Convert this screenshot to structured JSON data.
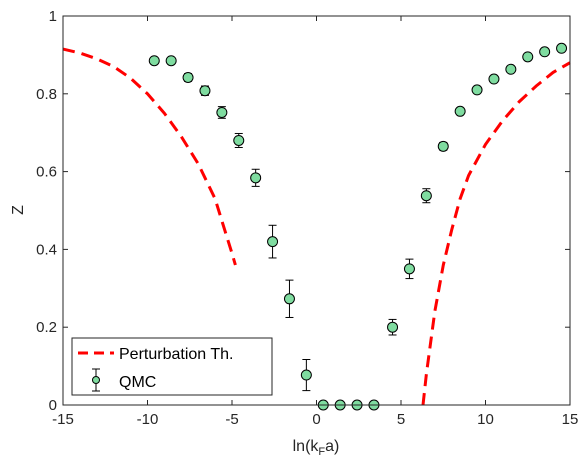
{
  "chart_data": {
    "type": "scatter",
    "xlabel": "ln(k",
    "xlabel_sub": "F",
    "xlabel_tail": "a)",
    "ylabel": "Z",
    "xlim": [
      -15,
      15
    ],
    "ylim": [
      0,
      1
    ],
    "x_ticks": [
      -15,
      -10,
      -5,
      0,
      5,
      10,
      15
    ],
    "y_ticks": [
      0,
      0.2,
      0.4,
      0.6,
      0.8,
      1
    ],
    "x_tick_labels": [
      "-15",
      "-10",
      "-5",
      "0",
      "5",
      "10",
      "15"
    ],
    "y_tick_labels": [
      "0",
      "0.2",
      "0.4",
      "0.6",
      "0.8",
      "1"
    ],
    "grid": false,
    "legend_position": "bottom-left",
    "colors": {
      "qmc_fill": "#7fdca0",
      "qmc_edge": "#000000",
      "perturbation": "#ff0000"
    },
    "series": [
      {
        "name": "Perturbation Th.",
        "style": "dashed-line",
        "segments": [
          [
            [
              -15,
              0.915
            ],
            [
              -14,
              0.905
            ],
            [
              -13,
              0.89
            ],
            [
              -12,
              0.87
            ],
            [
              -11,
              0.84
            ],
            [
              -10,
              0.8
            ],
            [
              -9,
              0.75
            ],
            [
              -8,
              0.69
            ],
            [
              -7,
              0.62
            ],
            [
              -6,
              0.53
            ],
            [
              -5.5,
              0.46
            ],
            [
              -5,
              0.39
            ],
            [
              -4.8,
              0.36
            ]
          ],
          [
            [
              6.3,
              0.0
            ],
            [
              6.5,
              0.08
            ],
            [
              7,
              0.24
            ],
            [
              7.5,
              0.36
            ],
            [
              8,
              0.45
            ],
            [
              8.5,
              0.53
            ],
            [
              9,
              0.59
            ],
            [
              10,
              0.67
            ],
            [
              11,
              0.73
            ],
            [
              12,
              0.78
            ],
            [
              13,
              0.82
            ],
            [
              14,
              0.855
            ],
            [
              15,
              0.88
            ]
          ]
        ]
      },
      {
        "name": "QMC",
        "style": "markers-errorbars",
        "points": [
          {
            "x": -9.6,
            "y": 0.885,
            "err": 0.008
          },
          {
            "x": -8.6,
            "y": 0.885,
            "err": 0.008
          },
          {
            "x": -7.6,
            "y": 0.842,
            "err": 0.01
          },
          {
            "x": -6.6,
            "y": 0.808,
            "err": 0.012
          },
          {
            "x": -5.6,
            "y": 0.752,
            "err": 0.015
          },
          {
            "x": -4.6,
            "y": 0.68,
            "err": 0.018
          },
          {
            "x": -3.6,
            "y": 0.584,
            "err": 0.022
          },
          {
            "x": -2.6,
            "y": 0.42,
            "err": 0.042
          },
          {
            "x": -1.6,
            "y": 0.273,
            "err": 0.048
          },
          {
            "x": -0.6,
            "y": 0.077,
            "err": 0.04
          },
          {
            "x": 0.4,
            "y": 0.0,
            "err": 0.0
          },
          {
            "x": 1.4,
            "y": 0.0,
            "err": 0.0
          },
          {
            "x": 2.4,
            "y": 0.0,
            "err": 0.0
          },
          {
            "x": 3.4,
            "y": 0.0,
            "err": 0.0
          },
          {
            "x": 4.5,
            "y": 0.2,
            "err": 0.02
          },
          {
            "x": 5.5,
            "y": 0.35,
            "err": 0.025
          },
          {
            "x": 6.5,
            "y": 0.538,
            "err": 0.018
          },
          {
            "x": 7.5,
            "y": 0.665,
            "err": 0.01
          },
          {
            "x": 8.5,
            "y": 0.755,
            "err": 0.008
          },
          {
            "x": 9.5,
            "y": 0.81,
            "err": 0.008
          },
          {
            "x": 10.5,
            "y": 0.838,
            "err": 0.008
          },
          {
            "x": 11.5,
            "y": 0.863,
            "err": 0.008
          },
          {
            "x": 12.5,
            "y": 0.895,
            "err": 0.008
          },
          {
            "x": 13.5,
            "y": 0.908,
            "err": 0.008
          },
          {
            "x": 14.5,
            "y": 0.917,
            "err": 0.008
          }
        ]
      }
    ]
  }
}
